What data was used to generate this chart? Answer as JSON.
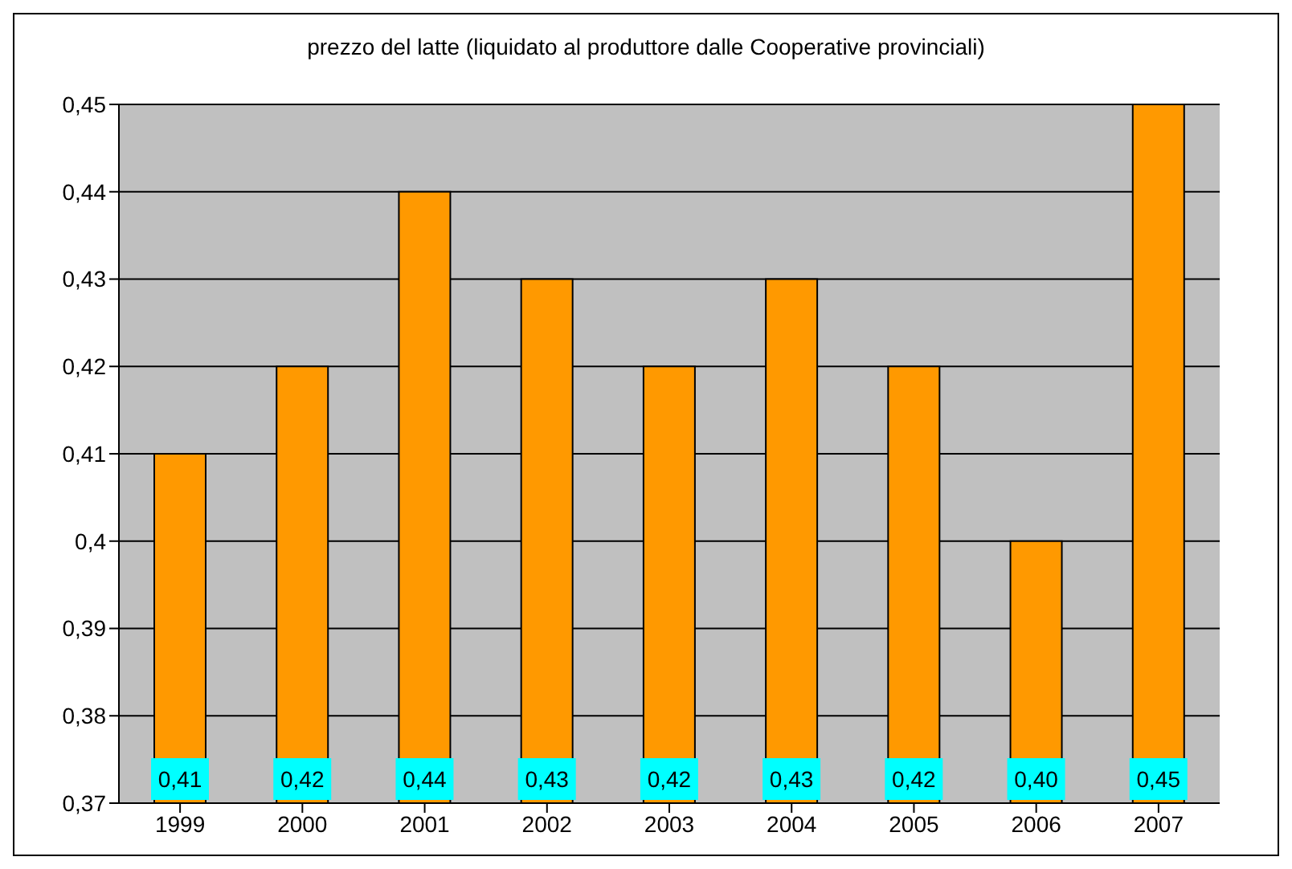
{
  "chart_data": {
    "type": "bar",
    "title": "prezzo del latte (liquidato al produttore dalle Cooperative provinciali)",
    "categories": [
      "1999",
      "2000",
      "2001",
      "2002",
      "2003",
      "2004",
      "2005",
      "2006",
      "2007"
    ],
    "values": [
      0.41,
      0.42,
      0.44,
      0.43,
      0.42,
      0.43,
      0.42,
      0.4,
      0.45
    ],
    "value_labels": [
      "0,41",
      "0,42",
      "0,44",
      "0,43",
      "0,42",
      "0,43",
      "0,42",
      "0,40",
      "0,45"
    ],
    "color": "#ff9900",
    "ylim": [
      0.37,
      0.45
    ],
    "yticks": [
      {
        "value": 0.37,
        "label": "0,37"
      },
      {
        "value": 0.38,
        "label": "0,38"
      },
      {
        "value": 0.39,
        "label": "0,39"
      },
      {
        "value": 0.4,
        "label": "0,4"
      },
      {
        "value": 0.41,
        "label": "0,41"
      },
      {
        "value": 0.42,
        "label": "0,42"
      },
      {
        "value": 0.43,
        "label": "0,43"
      },
      {
        "value": 0.44,
        "label": "0,44"
      },
      {
        "value": 0.45,
        "label": "0,45"
      }
    ],
    "grid": "y",
    "legend": false
  }
}
